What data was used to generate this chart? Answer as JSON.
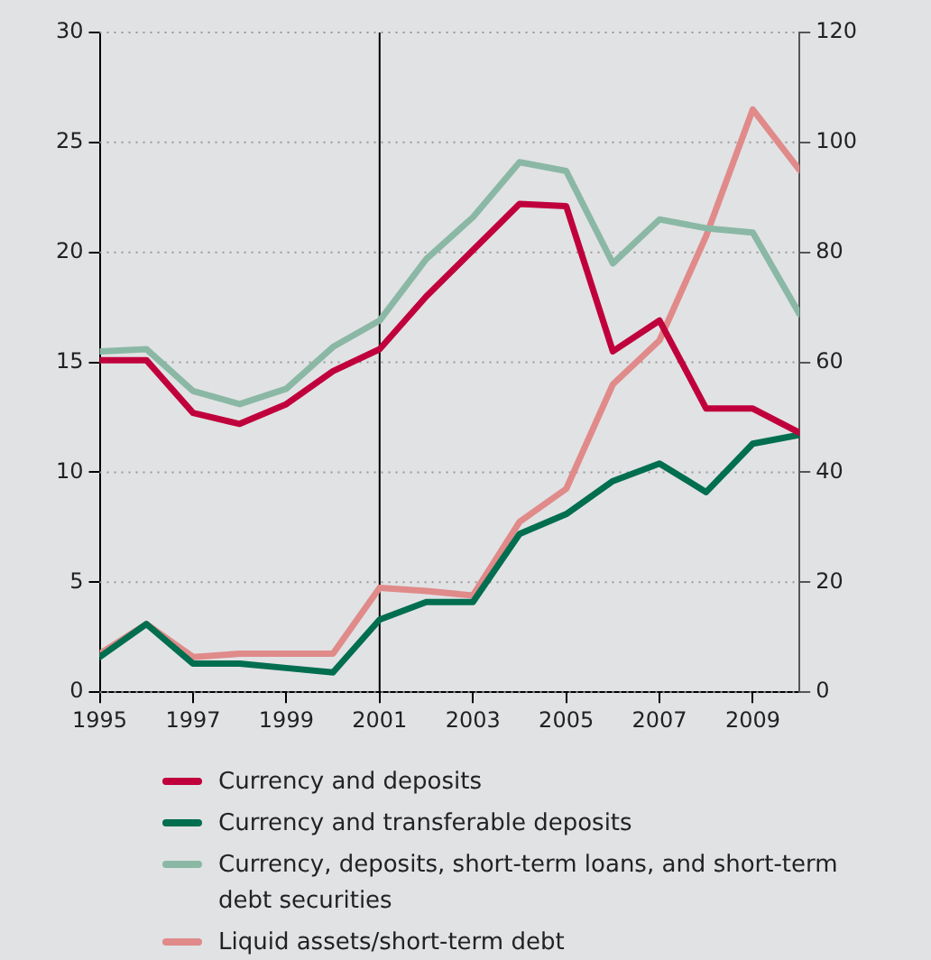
{
  "chart_data": {
    "type": "line",
    "x": [
      1995,
      1996,
      1997,
      1998,
      1999,
      2000,
      2001,
      2002,
      2003,
      2004,
      2005,
      2006,
      2007,
      2008,
      2009,
      2010
    ],
    "series": [
      {
        "name": "Currency and deposits",
        "color": "#c0003c",
        "values": [
          15.1,
          15.1,
          12.7,
          12.2,
          13.1,
          14.6,
          15.6,
          18.0,
          20.1,
          22.2,
          22.1,
          15.5,
          16.9,
          12.9,
          12.9,
          11.8
        ]
      },
      {
        "name": "Currency and transferable deposits",
        "color": "#006e4f",
        "values": [
          1.6,
          3.1,
          1.3,
          1.3,
          1.1,
          0.9,
          3.3,
          4.1,
          4.1,
          7.2,
          8.1,
          9.6,
          10.4,
          9.1,
          11.3,
          11.7
        ]
      },
      {
        "name": "Currency, deposits, short-term loans, and short-term debt securities",
        "color": "#8ab8a5",
        "values": [
          15.5,
          15.6,
          13.7,
          13.1,
          13.8,
          15.7,
          16.9,
          19.7,
          21.6,
          24.1,
          23.7,
          19.5,
          21.5,
          21.1,
          20.9,
          17.2
        ]
      },
      {
        "name": "Liquid assets/short-term debt",
        "color": "#e08a8a",
        "axis": "y2",
        "values": [
          7,
          12.4,
          6.4,
          7,
          7,
          7,
          19,
          18.4,
          17.6,
          31,
          37,
          56,
          64,
          83,
          106,
          95
        ]
      }
    ],
    "xlim": [
      1995,
      2010
    ],
    "xticks": [
      1995,
      1997,
      1999,
      2001,
      2003,
      2005,
      2007,
      2009
    ],
    "ylim": [
      0,
      30
    ],
    "yticks": [
      0,
      5,
      10,
      15,
      20,
      25,
      30
    ],
    "y2lim": [
      0,
      120
    ],
    "y2ticks": [
      0,
      20,
      40,
      60,
      80,
      100,
      120
    ],
    "ref_lines": [
      {
        "axis": "x",
        "value": 2001,
        "color": "#000000"
      }
    ],
    "grid": "y",
    "legend": "bottom",
    "marker": "none",
    "line_style": "solid"
  }
}
